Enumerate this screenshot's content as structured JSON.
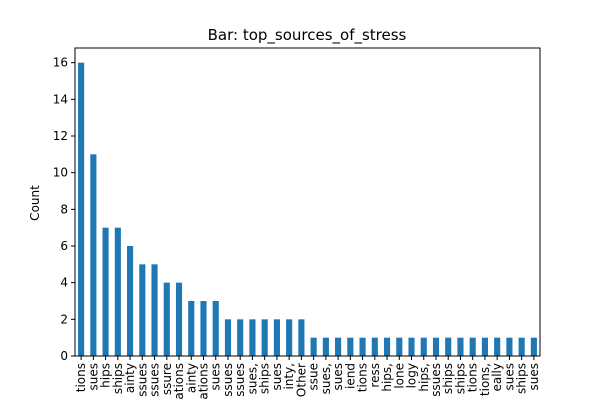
{
  "chart_data": {
    "type": "bar",
    "title": "Bar: top_sources_of_stress",
    "xlabel": "",
    "ylabel": "Count",
    "ylim": [
      0,
      16.8
    ],
    "yticks": [
      0,
      2,
      4,
      6,
      8,
      10,
      12,
      14,
      16
    ],
    "grid": false,
    "bar_color": "#1f77b4",
    "categories": [
      "tions",
      "sues",
      "hips",
      "ships",
      "ainty",
      "ssues",
      "ssues",
      "ssure",
      "ations",
      "ainty",
      "ations",
      "sues",
      "ssues",
      "ssues",
      "sues,",
      "ships",
      "sues",
      "inty,",
      "Other",
      "ssue",
      "sues,",
      "sues",
      "iend",
      "tions",
      "ress",
      "hips,",
      "lone",
      "logy",
      "hips,",
      "ssues",
      "ships",
      "ships",
      "tions",
      "tions,",
      "eally",
      "sues",
      "ships",
      "sues"
    ],
    "values": [
      16,
      11,
      7,
      7,
      6,
      5,
      5,
      4,
      4,
      3,
      3,
      3,
      2,
      2,
      2,
      2,
      2,
      2,
      2,
      1,
      1,
      1,
      1,
      1,
      1,
      1,
      1,
      1,
      1,
      1,
      1,
      1,
      1,
      1,
      1,
      1,
      1,
      1
    ]
  }
}
